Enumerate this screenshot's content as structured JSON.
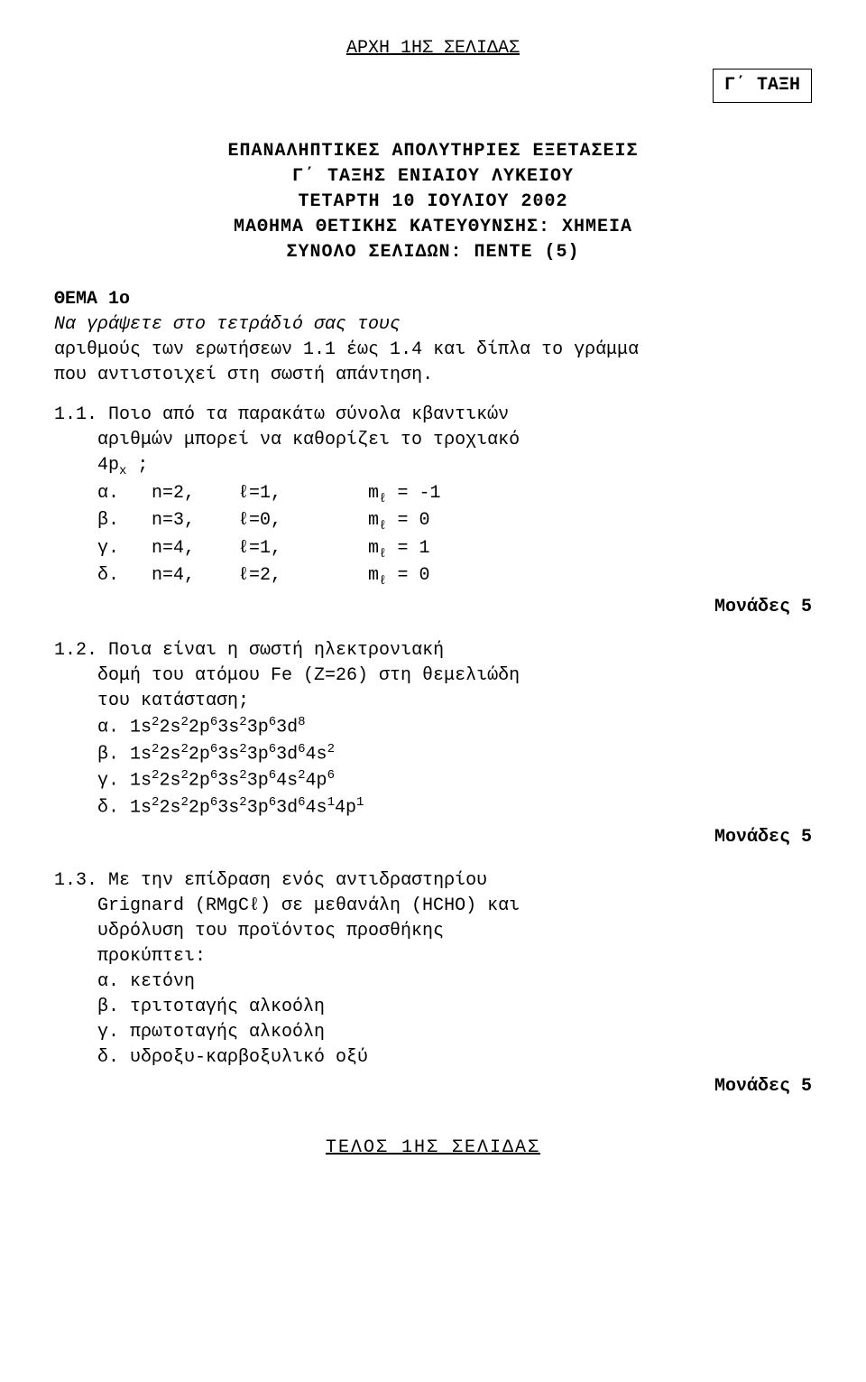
{
  "header": {
    "pageTop": "ΑΡΧΗ 1ΗΣ ΣΕΛΙΔΑΣ",
    "classBox": "Γ΄ ΤΑΞΗ"
  },
  "titleBlock": {
    "line1": "ΕΠΑΝΑΛΗΠΤΙΚΕΣ ΑΠΟΛΥΤΗΡΙΕΣ ΕΞΕΤΑΣΕΙΣ",
    "line2": "Γ΄ ΤΑΞΗΣ ΕΝΙΑΙΟΥ ΛΥΚΕΙΟΥ",
    "line3": "ΤΕΤΑΡΤΗ 10 ΙΟΥΛΙΟΥ 2002",
    "line4": "ΜΑΘΗΜΑ ΘΕΤΙΚΗΣ ΚΑΤΕΥΘΥΝΣΗΣ: ΧΗΜΕΙΑ",
    "line5": "ΣΥΝΟΛΟ ΣΕΛΙΔΩΝ: ΠΕΝΤΕ (5)"
  },
  "theme1": {
    "label": "ΘΕΜΑ 1ο",
    "introLine1": "Να γράψετε στο τετράδιό σας τους",
    "introLine2": "αριθμούς των ερωτήσεων 1.1  έως  1.4  και    δίπλα  το  γράμμα",
    "introLine3": "που αντιστοιχεί στη σωστή απάντηση."
  },
  "q11": {
    "textLine1": "1.1.   Ποιο  από  τα  παρακάτω  σύνολα  κβαντικών",
    "textLine2": "αριθμών  μπορεί  να  καθορίζει  το  τροχιακό",
    "textLine3": "4px ;",
    "optA": "α.   n=2,    ℓ=1,        mℓ = -1",
    "optB": "β.   n=3,    ℓ=0,        mℓ = 0",
    "optC": "γ.   n=4,    ℓ=1,        mℓ = 1",
    "optD": "δ.   n=4,    ℓ=2,        mℓ = 0",
    "points": "Μονάδες 5"
  },
  "q12": {
    "textLine1": "1.2.   Ποια    είναι    η    σωστή    ηλεκτρονιακή",
    "textLine2": "δομή  του  ατόμου  Fe  (Z=26)  στη  θεμελιώδη",
    "textLine3": "του κατάσταση;",
    "optA_label": "α.   ",
    "optB_label": "β.   ",
    "optC_label": "γ.   ",
    "optD_label": "δ.   ",
    "points": "Μονάδες 5"
  },
  "q13": {
    "textLine1": "1.3.   Με  την  επίδραση  ενός  αντιδραστηρίου",
    "textLine2": "Grignard (RMgCℓ) σε μεθανάλη (HCHO) και",
    "textLine3": "υδρόλυση του προϊόντος προσθήκης",
    "textLine4": "προκύπτει:",
    "optA": "α.   κετόνη",
    "optB": "β.   τριτοταγής αλκοόλη",
    "optC": "γ.   πρωτοταγής αλκοόλη",
    "optD": "δ.   υδροξυ-καρβοξυλικό οξύ",
    "points": "Μονάδες 5"
  },
  "footer": {
    "text": "ΤΕΛΟΣ 1ΗΣ ΣΕΛΙΔΑΣ"
  }
}
